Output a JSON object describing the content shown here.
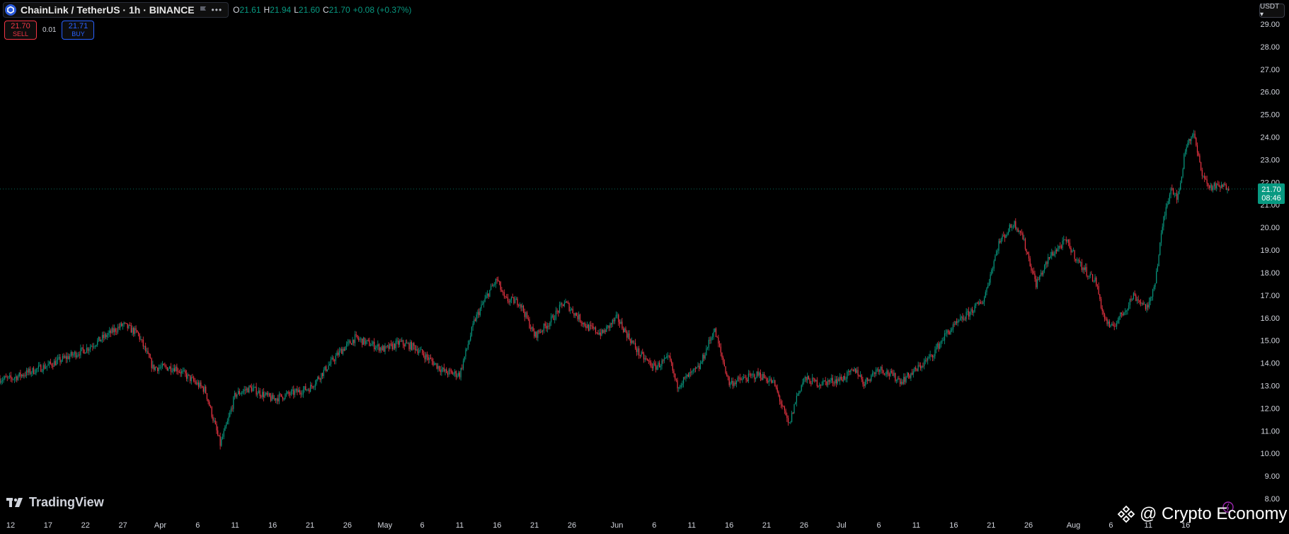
{
  "header": {
    "symbol_title": "ChainLink / TetherUS · 1h · BINANCE",
    "ohlc": [
      {
        "key": "O",
        "value": "21.61"
      },
      {
        "key": "H",
        "value": "21.94"
      },
      {
        "key": "L",
        "value": "21.60"
      },
      {
        "key": "C",
        "value": "21.70"
      }
    ],
    "change": "+0.08 (+0.37%)"
  },
  "trade": {
    "sell_price": "21.70",
    "sell_label": "SELL",
    "spread": "0.01",
    "buy_price": "21.71",
    "buy_label": "BUY"
  },
  "currency_label": "USDT ▾",
  "last_price_tag": {
    "price": "21.70",
    "countdown": "08:46"
  },
  "branding": {
    "tradingview": "TradingView",
    "watermark": "@ Crypto Economy"
  },
  "colors": {
    "up": "#089981",
    "down": "#f23645",
    "background": "#000000",
    "axis_text": "#d1d4dc"
  },
  "icons": [
    "chainlink-logo-icon",
    "flag-icon",
    "more-dots-icon",
    "tradingview-logo-icon",
    "binance-diamond-icon",
    "power-icon"
  ],
  "chart_data": {
    "type": "candlestick",
    "title": "ChainLink / TetherUS · 1h · BINANCE",
    "ylim": [
      8,
      29
    ],
    "y_ticks": [
      "29.00",
      "28.00",
      "27.00",
      "26.00",
      "25.00",
      "24.00",
      "23.00",
      "22.00",
      "21.00",
      "20.00",
      "19.00",
      "18.00",
      "17.00",
      "16.00",
      "15.00",
      "14.00",
      "13.00",
      "12.00",
      "11.00",
      "10.00",
      "9.00",
      "8.00"
    ],
    "x_ticks": [
      "12",
      "17",
      "22",
      "27",
      "Apr",
      "6",
      "11",
      "16",
      "21",
      "26",
      "May",
      "6",
      "11",
      "16",
      "21",
      "26",
      "Jun",
      "6",
      "11",
      "16",
      "21",
      "26",
      "Jul",
      "6",
      "11",
      "16",
      "21",
      "26",
      "Aug",
      "6",
      "11",
      "16"
    ],
    "last_price": 21.7,
    "grid": false,
    "series": [
      {
        "values": [
          [
            12,
            13.3
          ],
          [
            17,
            13.9
          ],
          [
            22,
            14.6
          ],
          [
            27,
            15.7
          ],
          [
            29,
            15.3
          ],
          [
            31,
            13.8
          ],
          [
            34,
            13.8
          ],
          [
            36,
            13.3
          ],
          [
            38,
            12.8
          ],
          [
            40,
            10.4
          ],
          [
            41,
            11.4
          ],
          [
            42,
            12.6
          ],
          [
            44,
            12.9
          ],
          [
            47,
            12.4
          ],
          [
            52,
            12.9
          ],
          [
            56,
            14.5
          ],
          [
            58,
            15.1
          ],
          [
            62,
            14.6
          ],
          [
            64,
            14.9
          ],
          [
            66,
            14.7
          ],
          [
            70,
            13.6
          ],
          [
            72,
            13.5
          ],
          [
            74,
            15.9
          ],
          [
            76,
            17.2
          ],
          [
            77,
            17.7
          ],
          [
            78,
            16.8
          ],
          [
            80,
            16.7
          ],
          [
            82,
            15.2
          ],
          [
            84,
            15.8
          ],
          [
            86,
            16.7
          ],
          [
            89,
            15.6
          ],
          [
            91,
            15.3
          ],
          [
            93,
            16.0
          ],
          [
            96,
            14.4
          ],
          [
            98,
            13.8
          ],
          [
            100,
            14.2
          ],
          [
            101,
            13.0
          ],
          [
            104,
            13.8
          ],
          [
            106,
            15.5
          ],
          [
            108,
            13.1
          ],
          [
            110,
            13.3
          ],
          [
            112,
            13.5
          ],
          [
            114,
            13.1
          ],
          [
            116,
            11.2
          ],
          [
            117,
            12.5
          ],
          [
            118,
            13.3
          ],
          [
            120,
            13.1
          ],
          [
            123,
            13.3
          ],
          [
            125,
            13.7
          ],
          [
            126,
            13.1
          ],
          [
            128,
            13.8
          ],
          [
            131,
            13.2
          ],
          [
            133,
            13.7
          ],
          [
            135,
            14.3
          ],
          [
            137,
            15.3
          ],
          [
            139,
            15.9
          ],
          [
            142,
            16.8
          ],
          [
            144,
            19.3
          ],
          [
            146,
            20.2
          ],
          [
            147,
            19.8
          ],
          [
            149,
            17.5
          ],
          [
            151,
            18.8
          ],
          [
            153,
            19.4
          ],
          [
            155,
            18.3
          ],
          [
            157,
            17.6
          ],
          [
            158,
            16.1
          ],
          [
            159,
            15.5
          ],
          [
            161,
            16.4
          ],
          [
            162,
            17.0
          ],
          [
            164,
            16.4
          ],
          [
            165,
            17.8
          ],
          [
            166,
            20.3
          ],
          [
            167,
            21.8
          ],
          [
            168,
            21.3
          ],
          [
            169,
            23.6
          ],
          [
            170,
            24.2
          ],
          [
            171,
            22.6
          ],
          [
            172,
            21.8
          ]
        ]
      }
    ]
  }
}
